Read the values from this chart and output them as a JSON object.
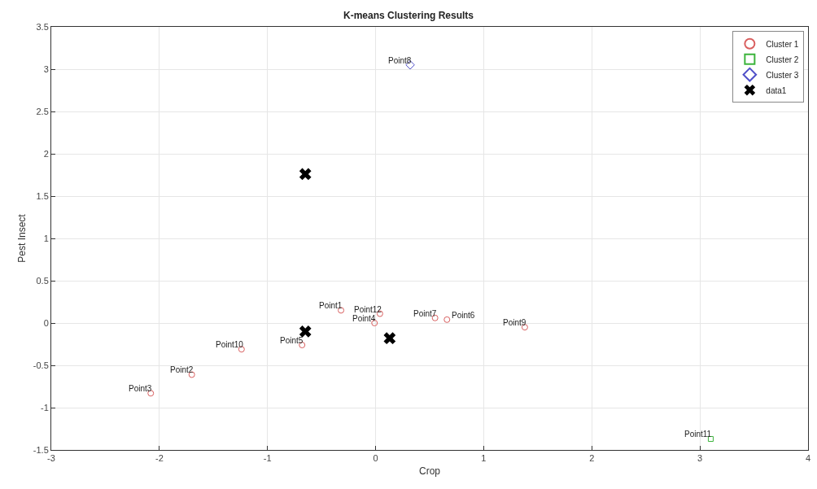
{
  "chart_data": {
    "type": "scatter",
    "title": "K-means Clustering Results",
    "xlabel": "Crop",
    "ylabel": "Pest Insect",
    "xlim": [
      -3,
      4
    ],
    "xticks": [
      -3,
      -2,
      -1,
      0,
      1,
      2,
      3,
      4
    ],
    "ylim": [
      -1.5,
      3.5
    ],
    "yticks": [
      -1.5,
      -1,
      -0.5,
      0,
      0.5,
      1,
      1.5,
      2,
      2.5,
      3,
      3.5
    ],
    "grid": true,
    "legend": "top right",
    "series": [
      {
        "name": "Cluster 1",
        "color": "#d95f5f",
        "marker": "circle",
        "x": [
          -0.32,
          -1.7,
          -2.08,
          -0.01,
          -0.68,
          0.66,
          0.55,
          1.38,
          -1.24,
          0.04
        ],
        "values": [
          0.15,
          -0.61,
          -0.83,
          0.0,
          -0.26,
          0.04,
          0.06,
          -0.05,
          -0.31,
          0.11
        ]
      },
      {
        "name": "Cluster 2",
        "color": "#3cb43c",
        "marker": "square",
        "x": [
          3.1
        ],
        "values": [
          -1.37
        ]
      },
      {
        "name": "Cluster 3",
        "color": "#5050c8",
        "marker": "diamond",
        "x": [
          0.32
        ],
        "values": [
          3.05
        ]
      },
      {
        "name": "data1",
        "color": "#000000",
        "marker": "cross",
        "x": [
          -0.65,
          -0.65,
          0.13
        ],
        "values": [
          1.76,
          -0.1,
          -0.18
        ]
      }
    ],
    "annotations": [
      {
        "text": "Point1",
        "x": -0.32,
        "y": 0.15
      },
      {
        "text": "Point2",
        "x": -1.7,
        "y": -0.61
      },
      {
        "text": "Point3",
        "x": -2.08,
        "y": -0.83
      },
      {
        "text": "Point4",
        "x": -0.01,
        "y": 0.0
      },
      {
        "text": "Point5",
        "x": -0.68,
        "y": -0.26
      },
      {
        "text": "Point6",
        "x": 0.66,
        "y": 0.04
      },
      {
        "text": "Point7",
        "x": 0.55,
        "y": 0.06
      },
      {
        "text": "Point8",
        "x": 0.32,
        "y": 3.05
      },
      {
        "text": "Point9",
        "x": 1.38,
        "y": -0.05
      },
      {
        "text": "Point10",
        "x": -1.24,
        "y": -0.31
      },
      {
        "text": "Point11",
        "x": 3.1,
        "y": -1.37
      },
      {
        "text": "Point12",
        "x": 0.04,
        "y": 0.11
      }
    ]
  }
}
